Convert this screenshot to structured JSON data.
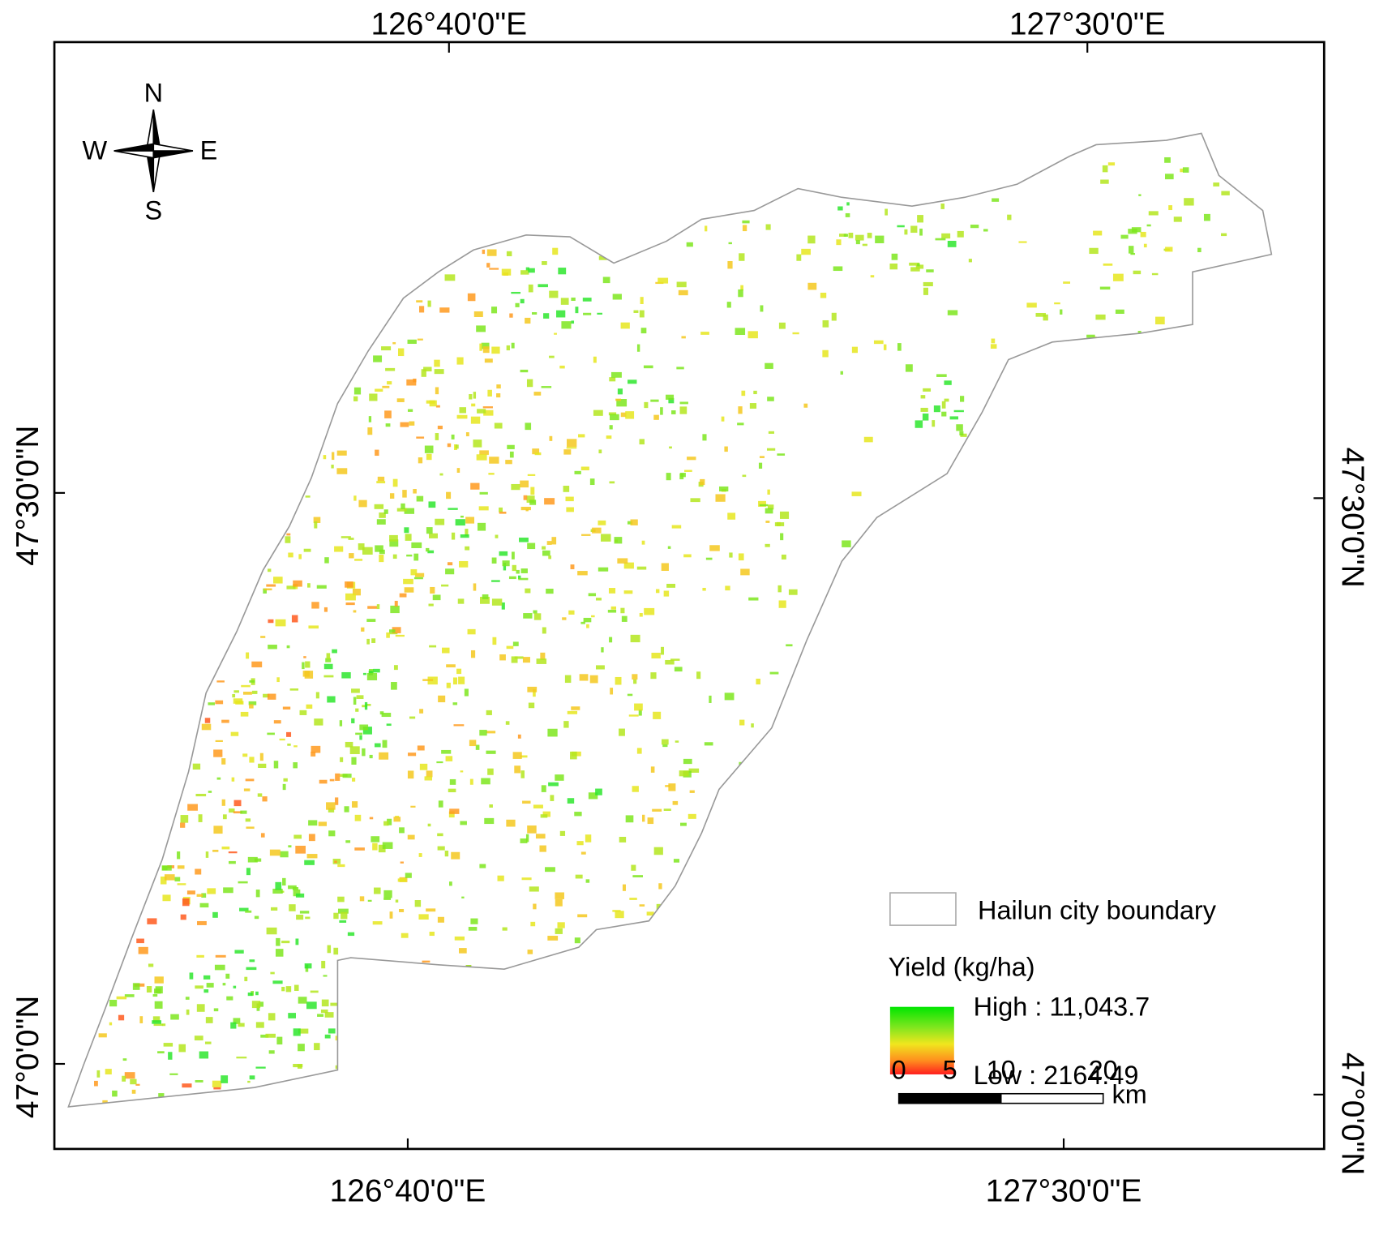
{
  "map": {
    "top_labels": [
      "126°40'0\"E",
      "127°30'0\"E"
    ],
    "bottom_labels": [
      "126°40'0\"E",
      "127°30'0\"E"
    ],
    "left_labels": [
      "47°30'0\"N",
      "47°0'0\"N"
    ],
    "right_labels": [
      "47°30'0\"N",
      "47°0'0\"N"
    ],
    "compass": {
      "n": "N",
      "e": "E",
      "s": "S",
      "w": "W"
    },
    "legend": {
      "boundary_label": "Hailun city boundary",
      "yield_title": "Yield (kg/ha)",
      "high_label": "High : 11,043.7",
      "low_label": "Low : 2164.49"
    },
    "scale_bar": {
      "ticks": [
        0,
        5,
        10,
        20
      ],
      "unit": "km"
    }
  }
}
